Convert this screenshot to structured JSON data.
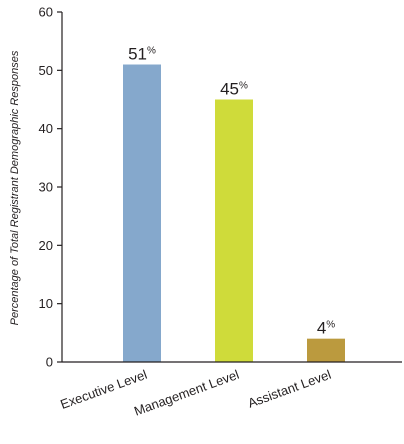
{
  "chart_data": {
    "type": "bar",
    "categories": [
      "Executive  Level",
      "Management Level",
      "Assistant Level"
    ],
    "values": [
      51,
      45,
      4
    ],
    "data_labels": [
      "51",
      "45",
      "4"
    ],
    "label_unit": "%",
    "colors": [
      "#85a8cc",
      "#cfdb3a",
      "#bb9a3e"
    ],
    "title": "",
    "xlabel": "",
    "ylabel": "Percentage of Total Registrant Demographic Responses",
    "ylim": [
      0,
      60
    ],
    "yticks": [
      0,
      10,
      20,
      30,
      40,
      50,
      60
    ],
    "grid": false,
    "legend": "none"
  }
}
